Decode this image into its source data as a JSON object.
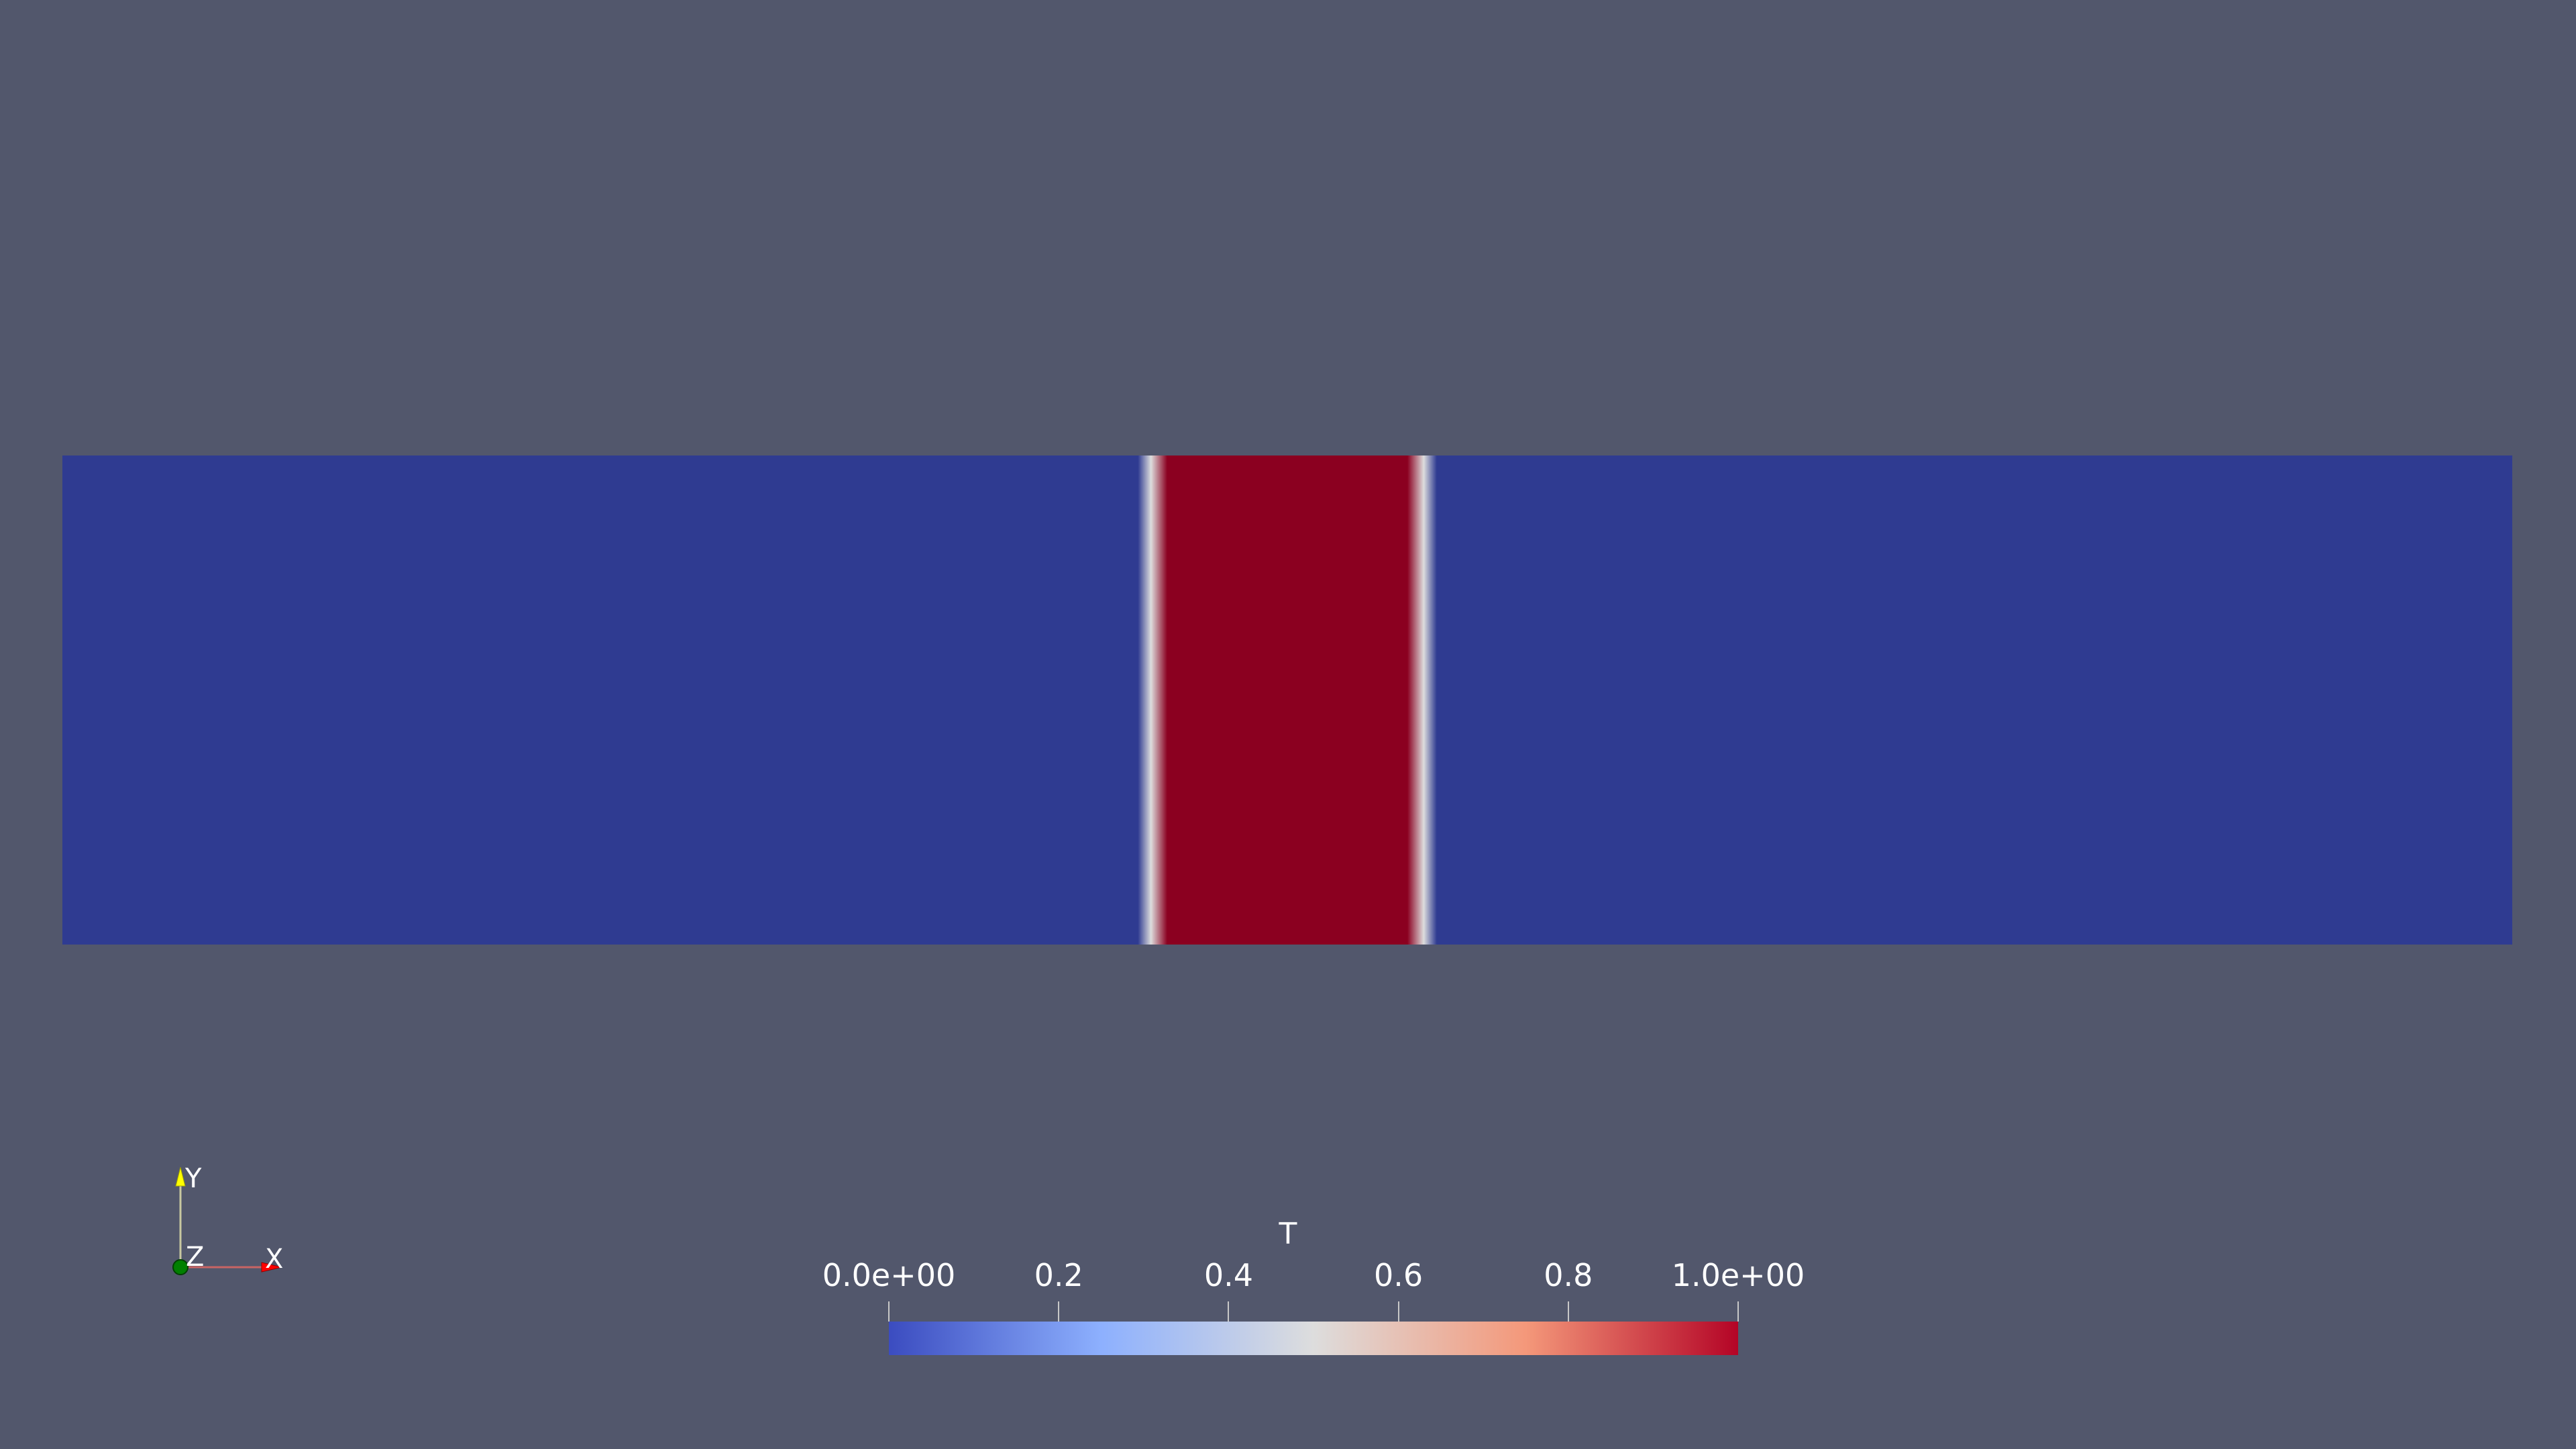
{
  "render": {
    "background_color": "#52576c",
    "colormap": "Cool to Warm",
    "colormap_stops": [
      {
        "t": 0.0,
        "color": "#3b4cc0"
      },
      {
        "t": 0.25,
        "color": "#8db0fe"
      },
      {
        "t": 0.5,
        "color": "#dddddd"
      },
      {
        "t": 0.75,
        "color": "#f4987a"
      },
      {
        "t": 1.0,
        "color": "#b40426"
      }
    ],
    "field": {
      "low_color": "#2f3b91",
      "high_color": "#8b0020",
      "high_band_start_fraction": 0.447,
      "high_band_end_fraction": 0.553,
      "transition_fraction": 0.008
    }
  },
  "orientation_axes": {
    "x_label": "X",
    "y_label": "Y",
    "z_label": "Z",
    "x_color": "#ff0000",
    "y_color": "#ffff00",
    "z_color": "#008000"
  },
  "scalar_bar": {
    "title": "T",
    "range": [
      0.0,
      1.0
    ],
    "tick_labels": [
      "0.0e+00",
      "0.2",
      "0.4",
      "0.6",
      "0.8",
      "1.0e+00"
    ],
    "tick_values": [
      0.0,
      0.2,
      0.4,
      0.6,
      0.8,
      1.0
    ]
  }
}
